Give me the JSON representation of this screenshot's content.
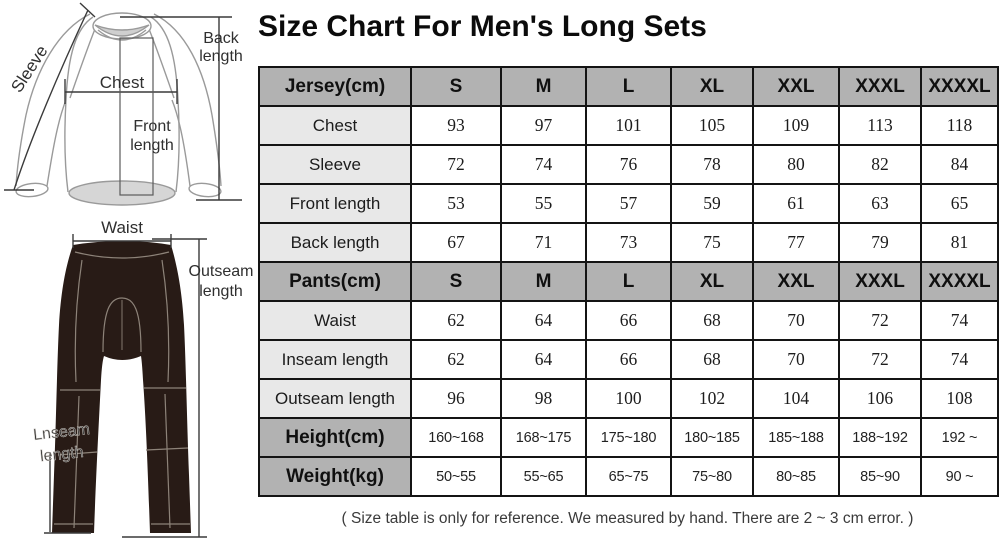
{
  "title": "Size Chart For Men's Long Sets",
  "footer_note": "( Size table is only for reference. We measured by hand. There are 2 ~ 3 cm error. )",
  "colors": {
    "header_bg": "#b2b2b2",
    "label_bg": "#e8e8e8",
    "cell_bg": "#ffffff",
    "grid_border": "#141414",
    "pants_fill": "#281b16",
    "pants_seam": "#8d8379",
    "jersey_outline": "#9a9a9a",
    "measure_line": "#3a3a3a"
  },
  "diagram": {
    "sleeve_label": "Sleeve",
    "back_length_label": [
      "Back",
      "length"
    ],
    "chest_label": "Chest",
    "front_length_label": [
      "Front",
      "length"
    ],
    "waist_label": "Waist",
    "outseam_label": [
      "Outseam",
      "length"
    ],
    "inseam_label": [
      "Lnseam",
      "length"
    ]
  },
  "table": {
    "size_columns": [
      "S",
      "M",
      "L",
      "XL",
      "XXL",
      "XXXL",
      "XXXXL"
    ],
    "rows": [
      {
        "type": "header",
        "label": "Jersey(cm)",
        "cells": [
          "S",
          "M",
          "L",
          "XL",
          "XXL",
          "XXXL",
          "XXXXL"
        ]
      },
      {
        "type": "data",
        "label": "Chest",
        "cells": [
          "93",
          "97",
          "101",
          "105",
          "109",
          "113",
          "118"
        ]
      },
      {
        "type": "data",
        "label": "Sleeve",
        "cells": [
          "72",
          "74",
          "76",
          "78",
          "80",
          "82",
          "84"
        ]
      },
      {
        "type": "data",
        "label": "Front length",
        "cells": [
          "53",
          "55",
          "57",
          "59",
          "61",
          "63",
          "65"
        ]
      },
      {
        "type": "data",
        "label": "Back length",
        "cells": [
          "67",
          "71",
          "73",
          "75",
          "77",
          "79",
          "81"
        ]
      },
      {
        "type": "header",
        "label": "Pants(cm)",
        "cells": [
          "S",
          "M",
          "L",
          "XL",
          "XXL",
          "XXXL",
          "XXXXL"
        ]
      },
      {
        "type": "data",
        "label": "Waist",
        "cells": [
          "62",
          "64",
          "66",
          "68",
          "70",
          "72",
          "74"
        ]
      },
      {
        "type": "data",
        "label": "Inseam length",
        "cells": [
          "62",
          "64",
          "66",
          "68",
          "70",
          "72",
          "74"
        ]
      },
      {
        "type": "data",
        "label": "Outseam length",
        "cells": [
          "96",
          "98",
          "100",
          "102",
          "104",
          "106",
          "108"
        ]
      },
      {
        "type": "range",
        "label": "Height(cm)",
        "cells": [
          "160~168",
          "168~175",
          "175~180",
          "180~185",
          "185~188",
          "188~192",
          "192 ~"
        ]
      },
      {
        "type": "range",
        "label": "Weight(kg)",
        "cells": [
          "50~55",
          "55~65",
          "65~75",
          "75~80",
          "80~85",
          "85~90",
          "90 ~"
        ]
      }
    ]
  }
}
